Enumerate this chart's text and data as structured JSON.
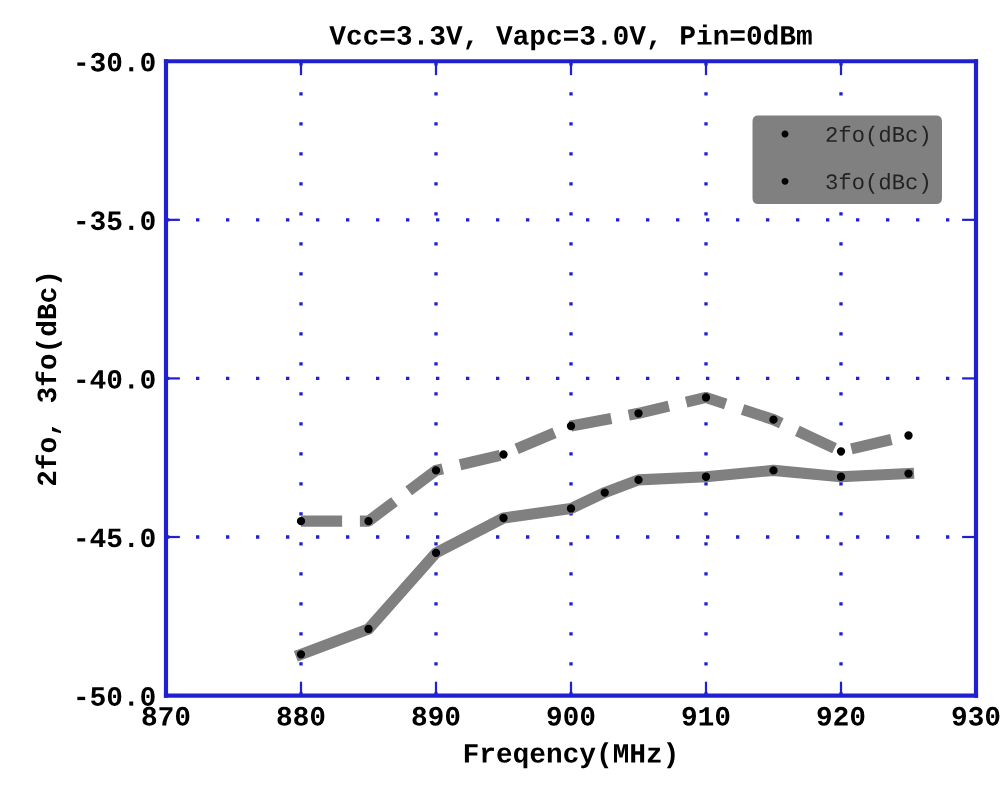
{
  "chart_data": {
    "type": "line",
    "title": "Vcc=3.3V, Vapc=3.0V, Pin=0dBm",
    "xlabel": "Freqency(MHz)",
    "ylabel": "2fo, 3fo(dBc)",
    "series": [
      {
        "name": "2fo(dBc)",
        "color": "#808080",
        "line_style": "dashed",
        "x": [
          880,
          885,
          890,
          895,
          900,
          905,
          910,
          915,
          920,
          925
        ],
        "values": [
          -44.5,
          -44.5,
          -42.9,
          -42.4,
          -41.5,
          -41.1,
          -40.6,
          -41.3,
          -42.3,
          -41.8
        ]
      },
      {
        "name": "3fo(dBc)",
        "color": "#808080",
        "line_style": "solid",
        "x": [
          880,
          885,
          890,
          895,
          900,
          902.5,
          905,
          910,
          915,
          920,
          925
        ],
        "values": [
          -48.7,
          -47.9,
          -45.5,
          -44.4,
          -44.1,
          -43.6,
          -43.2,
          -43.1,
          -42.9,
          -43.1,
          -43.0
        ]
      }
    ],
    "xlim": [
      870,
      930
    ],
    "xticks": [
      870,
      880,
      890,
      900,
      910,
      920,
      930
    ],
    "ylim": [
      -50,
      -30
    ],
    "yticks": [
      {
        "value": -50,
        "label": "-50.0"
      },
      {
        "value": -45,
        "label": "-45.0"
      },
      {
        "value": -40,
        "label": "-40.0"
      },
      {
        "value": -35,
        "label": "-35.0"
      },
      {
        "value": -30,
        "label": "-30.0"
      }
    ],
    "grid": true,
    "legend": "top right",
    "marker": "circle"
  }
}
